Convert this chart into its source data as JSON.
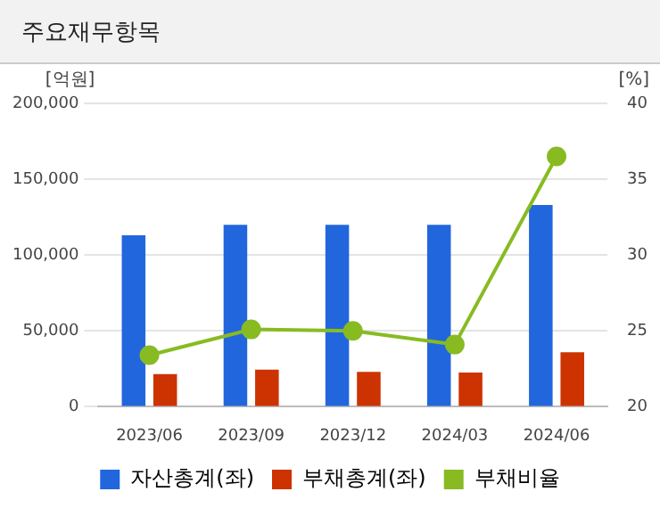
{
  "chart_data": {
    "type": "bar",
    "title": "주요재무항목",
    "ylabel": "[억원]",
    "y2label": "[%]",
    "categories": [
      "2023/06",
      "2023/09",
      "2023/12",
      "2024/03",
      "2024/06"
    ],
    "series": [
      {
        "name": "자산총계(좌)",
        "color": "#2266dd",
        "values": [
          113000,
          120000,
          120000,
          120000,
          133000
        ]
      },
      {
        "name": "부채총계(좌)",
        "color": "#cc3300",
        "values": [
          21500,
          24500,
          23000,
          22500,
          36000
        ]
      },
      {
        "type": "line",
        "axis": "y2",
        "name": "부채비율",
        "color": "#88bb22",
        "values": [
          23.4,
          25.1,
          25.0,
          24.1,
          36.5
        ]
      }
    ],
    "ylim": [
      0,
      200000
    ],
    "yticks": [
      {
        "value": 0,
        "label": "0"
      },
      {
        "value": 50000,
        "label": "50,000"
      },
      {
        "value": 100000,
        "label": "100,000"
      },
      {
        "value": 150000,
        "label": "150,000"
      },
      {
        "value": 200000,
        "label": "200,000"
      }
    ],
    "y2lim": [
      20,
      40
    ],
    "y2ticks": [
      20,
      25,
      30,
      35,
      40
    ],
    "grid": "y",
    "legend": "bottom",
    "marker": "circle"
  }
}
